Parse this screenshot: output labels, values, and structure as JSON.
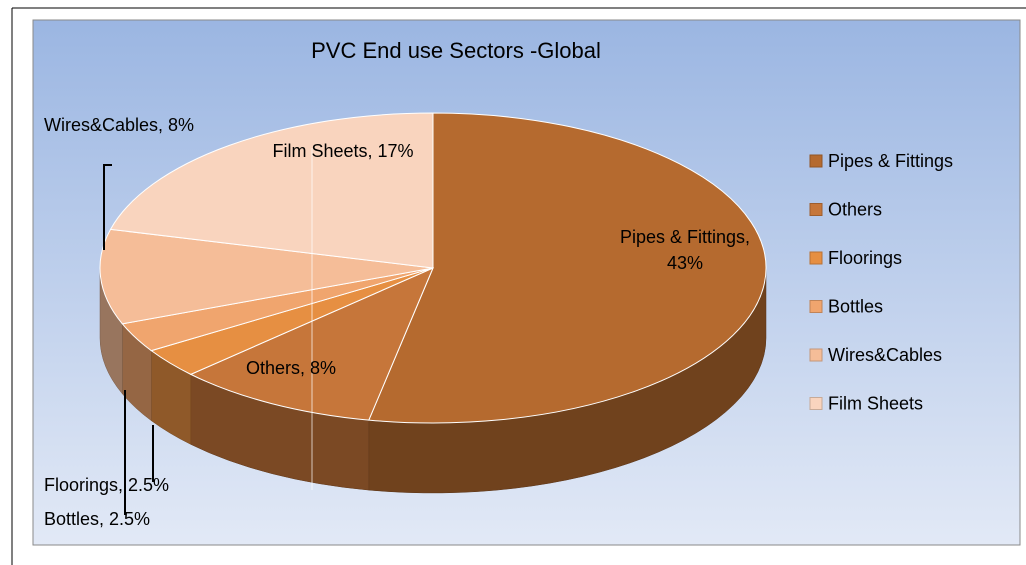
{
  "chart_data": {
    "type": "pie",
    "title": "PVC End use Sectors -Global",
    "categories": [
      "Pipes & Fittings",
      "Others",
      "Floorings",
      "Bottles",
      "Wires&Cables",
      "Film Sheets"
    ],
    "values": [
      43,
      8,
      2.5,
      2.5,
      8,
      17
    ],
    "value_labels": [
      "Pipes & Fittings, 43%",
      "Others, 8%",
      "Floorings, 2.5%",
      "Bottles, 2.5%",
      "Wires&Cables, 8%",
      "Film Sheets, 17%"
    ],
    "colors": [
      "#b56a2f",
      "#c6763a",
      "#e68f42",
      "#f0a56e",
      "#f5bd98",
      "#f9d4be"
    ],
    "legend": "right",
    "3d": true
  }
}
